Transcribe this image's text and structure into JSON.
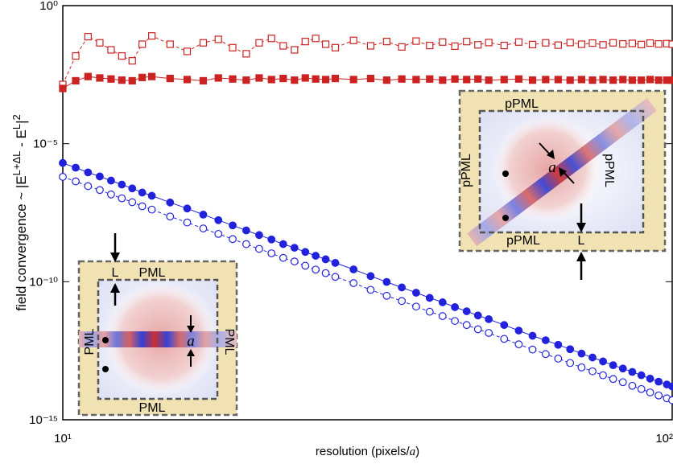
{
  "chart_data": {
    "type": "scatter-line",
    "log_x": true,
    "log_y": true,
    "xlabel": [
      "resolution (pixels/",
      "a",
      ")"
    ],
    "ylabel": [
      "field convergence ~ |E",
      "L+ΔL",
      " - E",
      "L",
      "|",
      "2"
    ],
    "xlim": [
      10,
      100
    ],
    "ylim": [
      1e-15,
      1
    ],
    "xticks": [
      {
        "value": 10,
        "label": "10¹"
      },
      {
        "value": 100,
        "label": "10²"
      }
    ],
    "yticks": [
      {
        "value": 1e-15,
        "label": "10⁻¹⁵"
      },
      {
        "value": 1e-10,
        "label": "10⁻¹⁰"
      },
      {
        "value": 1e-05,
        "label": "10⁻⁵"
      },
      {
        "value": 1,
        "label": "10⁰"
      }
    ],
    "x": [
      10,
      10.5,
      11,
      11.5,
      12,
      12.5,
      13,
      13.5,
      14,
      15,
      16,
      17,
      18,
      19,
      20,
      21,
      22,
      23,
      24,
      25,
      26,
      27,
      28,
      30,
      32,
      34,
      36,
      38,
      40,
      42,
      44,
      46,
      48,
      50,
      53,
      56,
      59,
      62,
      65,
      68,
      71,
      74,
      77,
      80,
      83,
      86,
      89,
      92,
      95,
      98,
      100
    ],
    "series": [
      {
        "color": "#cc2222",
        "marker": "square",
        "filled": false,
        "dashed": true,
        "values": [
          0.0014,
          0.015,
          0.075,
          0.045,
          0.025,
          0.015,
          0.01,
          0.04,
          0.08,
          0.04,
          0.022,
          0.045,
          0.06,
          0.03,
          0.018,
          0.045,
          0.065,
          0.035,
          0.025,
          0.05,
          0.065,
          0.04,
          0.03,
          0.055,
          0.035,
          0.05,
          0.032,
          0.052,
          0.036,
          0.048,
          0.034,
          0.05,
          0.038,
          0.046,
          0.036,
          0.048,
          0.039,
          0.045,
          0.037,
          0.046,
          0.04,
          0.044,
          0.038,
          0.045,
          0.041,
          0.043,
          0.039,
          0.044,
          0.041,
          0.042,
          0.04
        ]
      },
      {
        "color": "#cc2222",
        "marker": "square",
        "filled": true,
        "dashed": false,
        "values": [
          0.001,
          0.0019,
          0.0027,
          0.0024,
          0.0022,
          0.002,
          0.0019,
          0.0025,
          0.0027,
          0.0023,
          0.0021,
          0.0019,
          0.0024,
          0.0022,
          0.002,
          0.0024,
          0.0021,
          0.0023,
          0.002,
          0.0024,
          0.0022,
          0.0021,
          0.0023,
          0.0021,
          0.0023,
          0.002,
          0.0022,
          0.0021,
          0.0022,
          0.002,
          0.0022,
          0.0021,
          0.0022,
          0.002,
          0.0021,
          0.0022,
          0.002,
          0.0021,
          0.0021,
          0.002,
          0.0021,
          0.002,
          0.0021,
          0.002,
          0.0021,
          0.002,
          0.002,
          0.0021,
          0.002,
          0.002,
          0.002
        ]
      },
      {
        "color": "#2222dd",
        "marker": "circle",
        "filled": true,
        "dashed": false,
        "values": [
          2e-06,
          1.35e-06,
          9.1e-07,
          6.5e-07,
          4.6e-07,
          3.3e-07,
          2.4e-07,
          1.7e-07,
          1.3e-07,
          7.4e-08,
          4.5e-08,
          2.7e-08,
          1.7e-08,
          1.1e-08,
          7.2e-09,
          4.9e-09,
          3.4e-09,
          2.3e-09,
          1.7e-09,
          1.2e-09,
          8.7e-10,
          6.5e-10,
          4.8e-10,
          2.8e-10,
          1.6e-10,
          9.8e-11,
          6.2e-11,
          4e-11,
          2.6e-11,
          1.8e-11,
          1.2e-11,
          8.5e-12,
          6e-12,
          4.4e-12,
          2.7e-12,
          1.7e-12,
          1.1e-12,
          7.6e-13,
          5.2e-13,
          3.6e-13,
          2.5e-13,
          1.8e-13,
          1.3e-13,
          9.5e-14,
          7.2e-14,
          5.4e-14,
          4.1e-14,
          3.1e-14,
          2.4e-14,
          1.9e-14,
          1.6e-14
        ]
      },
      {
        "color": "#2222dd",
        "marker": "circle",
        "filled": false,
        "dashed": true,
        "values": [
          6.3e-07,
          4.3e-07,
          2.9e-07,
          2.1e-07,
          1.45e-07,
          1.05e-07,
          7.6e-08,
          5.4e-08,
          4.1e-08,
          2.3e-08,
          1.4e-08,
          8.5e-09,
          5.4e-09,
          3.5e-09,
          2.3e-09,
          1.55e-09,
          1.07e-09,
          7.3e-10,
          5.4e-10,
          3.8e-10,
          2.75e-10,
          2.05e-10,
          1.5e-10,
          8.9e-11,
          5.1e-11,
          3.1e-11,
          2e-11,
          1.26e-11,
          8.2e-12,
          5.7e-12,
          3.8e-12,
          2.7e-12,
          1.9e-12,
          1.4e-12,
          8.5e-13,
          5.4e-13,
          3.5e-13,
          2.4e-13,
          1.64e-13,
          1.14e-13,
          7.9e-14,
          5.7e-14,
          4.1e-14,
          3e-14,
          2.3e-14,
          1.7e-14,
          1.3e-14,
          9.8e-15,
          7.6e-15,
          6e-15,
          5.1e-15
        ]
      }
    ],
    "annotations": [
      "PML",
      "PML",
      "PML",
      "PML",
      "L",
      "a",
      "pPML",
      "pPML",
      "pPML",
      "pPML",
      "L",
      "a"
    ]
  }
}
